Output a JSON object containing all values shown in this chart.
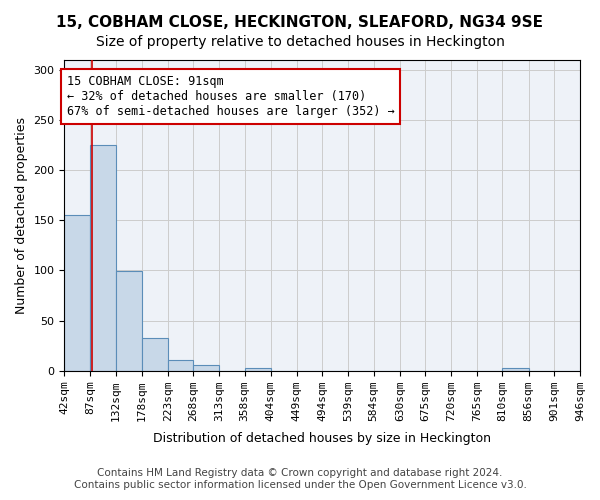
{
  "title1": "15, COBHAM CLOSE, HECKINGTON, SLEAFORD, NG34 9SE",
  "title2": "Size of property relative to detached houses in Heckington",
  "xlabel": "Distribution of detached houses by size in Heckington",
  "ylabel": "Number of detached properties",
  "bar_color": "#c8d8e8",
  "bar_edge_color": "#5b8db8",
  "grid_color": "#cccccc",
  "bg_color": "#eef2f8",
  "annotation_text": "15 COBHAM CLOSE: 91sqm\n← 32% of detached houses are smaller (170)\n67% of semi-detached houses are larger (352) →",
  "annotation_box_color": "#ffffff",
  "annotation_box_edge": "#cc0000",
  "property_line_color": "#cc0000",
  "property_line_x": 91,
  "bin_edges": [
    42,
    87,
    132,
    178,
    223,
    268,
    313,
    358,
    404,
    449,
    494,
    539,
    584,
    630,
    675,
    720,
    765,
    810,
    856,
    901,
    946
  ],
  "bin_heights": [
    155,
    225,
    99,
    33,
    11,
    6,
    0,
    3,
    0,
    0,
    0,
    0,
    0,
    0,
    0,
    0,
    0,
    3,
    0,
    0
  ],
  "ylim": [
    0,
    310
  ],
  "yticks": [
    0,
    50,
    100,
    150,
    200,
    250,
    300
  ],
  "footnote": "Contains HM Land Registry data © Crown copyright and database right 2024.\nContains public sector information licensed under the Open Government Licence v3.0.",
  "title_fontsize": 11,
  "subtitle_fontsize": 10,
  "axis_label_fontsize": 9,
  "tick_fontsize": 8,
  "footnote_fontsize": 7.5
}
